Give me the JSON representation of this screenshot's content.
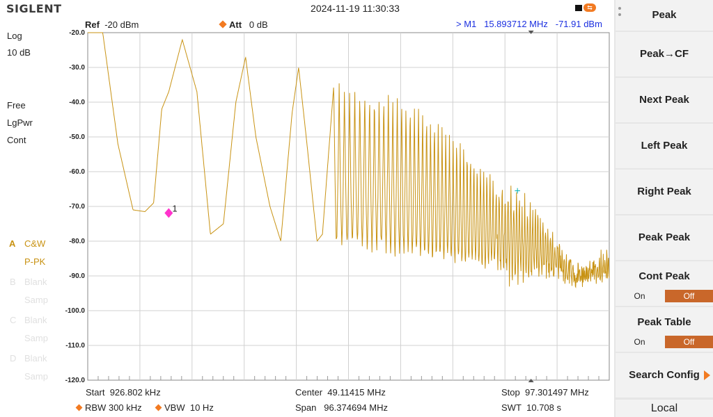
{
  "brand": "SIGLENT",
  "datetime": "2024-11-19 11:30:33",
  "header": {
    "ref_label": "Ref",
    "ref_value": "-20 dBm",
    "att_label": "Att",
    "att_value": "0 dB",
    "marker_label": ">  M1",
    "marker_freq": "15.893712 MHz",
    "marker_level": "-71.91 dBm"
  },
  "left": {
    "scale": "Log",
    "div": "10 dB",
    "mode": "Free",
    "avg": "LgPwr",
    "sweep": "Cont",
    "trace_a": {
      "letter": "A",
      "type": "C&W",
      "detector": "P-PK"
    },
    "trace_b": {
      "letter": "B",
      "type": "Blank",
      "detector": "Samp"
    },
    "trace_c": {
      "letter": "C",
      "type": "Blank",
      "detector": "Samp"
    },
    "trace_d": {
      "letter": "D",
      "type": "Blank",
      "detector": "Samp"
    }
  },
  "bottom": {
    "start_label": "Start",
    "start_value": "926.802 kHz",
    "center_label": "Center",
    "center_value": "49.11415 MHz",
    "stop_label": "Stop",
    "stop_value": "97.301497 MHz",
    "rbw_label": "RBW",
    "rbw_value": "300 kHz",
    "vbw_label": "VBW",
    "vbw_value": "10 Hz",
    "span_label": "Span",
    "span_value": "96.374694 MHz",
    "swt_label": "SWT",
    "swt_value": "10.708 s"
  },
  "menu": {
    "peak": "Peak",
    "peak_cf": "Peak→CF",
    "next_peak": "Next Peak",
    "left_peak": "Left Peak",
    "right_peak": "Right Peak",
    "peak_peak": "Peak Peak",
    "cont_peak": "Cont Peak",
    "cont_peak_on": "On",
    "cont_peak_off": "Off",
    "peak_table": "Peak Table",
    "peak_table_on": "On",
    "peak_table_off": "Off",
    "search_config": "Search Config",
    "local": "Local"
  },
  "marker": {
    "id": "1",
    "freq_mhz": 15.893712,
    "level_dbm": -71.91
  },
  "colors": {
    "trace": "#c89212",
    "marker": "#ff33cc",
    "accent": "#f27a21",
    "marker_text": "#1b2fe0"
  },
  "chart_data": {
    "type": "line",
    "x_start_mhz": 0.926802,
    "x_stop_mhz": 97.301497,
    "ylim": [
      -120,
      -20
    ],
    "y_ticks": [
      "-20.0",
      "-30.0",
      "-40.0",
      "-50.0",
      "-60.0",
      "-70.0",
      "-80.0",
      "-90.0",
      "-100.0",
      "-110.0",
      "-120.0"
    ],
    "grid": true,
    "series": [
      {
        "envelope_points_mhz_dbm": [
          [
            0.93,
            -20
          ],
          [
            3.7,
            -20
          ],
          [
            6.5,
            -52
          ],
          [
            9.3,
            -71
          ],
          [
            11.5,
            -71.5
          ],
          [
            13.1,
            -69
          ],
          [
            14.6,
            -42
          ],
          [
            15.9,
            -37
          ],
          [
            18.4,
            -22
          ],
          [
            21.1,
            -37
          ],
          [
            23.6,
            -78
          ],
          [
            26,
            -75
          ],
          [
            28.3,
            -40
          ],
          [
            30.1,
            -27
          ],
          [
            32,
            -50
          ],
          [
            34.6,
            -70
          ],
          [
            36.6,
            -80
          ],
          [
            38.7,
            -43
          ],
          [
            39.9,
            -30
          ],
          [
            41.3,
            -50
          ],
          [
            43.3,
            -80
          ],
          [
            44.3,
            -78
          ],
          [
            46.4,
            -35
          ],
          [
            51,
            -36
          ],
          [
            56,
            -38
          ],
          [
            61,
            -40
          ],
          [
            65,
            -45
          ],
          [
            69,
            -50
          ],
          [
            73,
            -56
          ],
          [
            77,
            -62
          ],
          [
            80,
            -65.5
          ],
          [
            83,
            -68
          ],
          [
            86,
            -75
          ],
          [
            89,
            -84
          ],
          [
            91,
            -90
          ],
          [
            93,
            -90
          ],
          [
            95,
            -85
          ],
          [
            97.3,
            -82
          ]
        ],
        "floor_points_mhz_dbm": [
          [
            46.4,
            -80
          ],
          [
            56,
            -82
          ],
          [
            63,
            -84
          ],
          [
            70,
            -86
          ],
          [
            76,
            -87
          ],
          [
            80,
            -90
          ],
          [
            84,
            -90
          ],
          [
            88,
            -89
          ],
          [
            97.3,
            -91
          ]
        ]
      }
    ]
  }
}
